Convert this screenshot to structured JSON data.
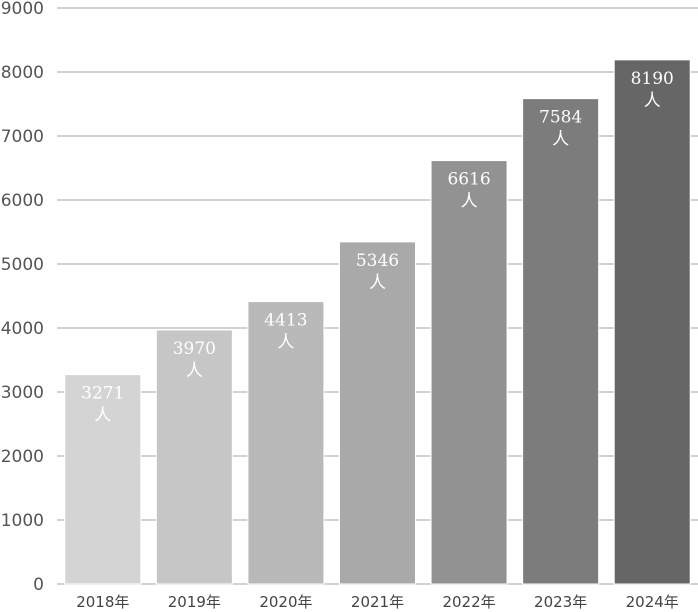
{
  "chart_data": {
    "type": "bar",
    "title": "",
    "xlabel": "",
    "ylabel": "",
    "categories": [
      "2018年",
      "2019年",
      "2020年",
      "2021年",
      "2022年",
      "2023年",
      "2024年"
    ],
    "values": [
      3271,
      3970,
      4413,
      5346,
      6616,
      7584,
      8190
    ],
    "data_labels": [
      "3271",
      "3970",
      "4413",
      "5346",
      "6616",
      "7584",
      "8190"
    ],
    "value_unit": "人",
    "ylim": [
      0,
      9000
    ],
    "yticks": [
      "0",
      "1000",
      "2000",
      "3000",
      "4000",
      "5000",
      "6000",
      "7000",
      "8000",
      "9000"
    ],
    "grid": true,
    "legend": "none",
    "bar_colors": [
      "#d4d4d4",
      "#c6c6c6",
      "#b9b9b9",
      "#a9a9a9",
      "#929292",
      "#7c7c7c",
      "#666666"
    ]
  }
}
